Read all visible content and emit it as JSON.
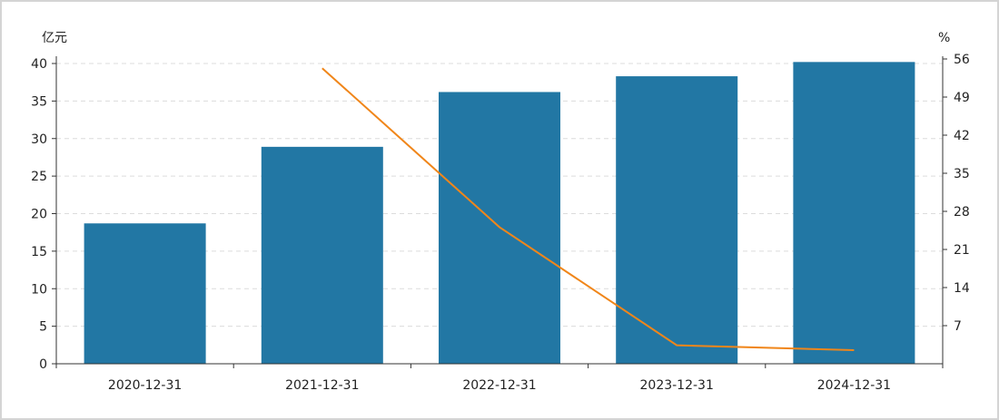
{
  "chart_data": {
    "type": "bar",
    "categories": [
      "2020-12-31",
      "2021-12-31",
      "2022-12-31",
      "2023-12-31",
      "2024-12-31"
    ],
    "series": [
      {
        "type": "bar",
        "axis": "left",
        "color": "#2277a4",
        "values": [
          18.7,
          28.9,
          36.2,
          38.3,
          40.2
        ]
      },
      {
        "type": "line",
        "axis": "right",
        "color": "#f0861a",
        "values": [
          null,
          54.3,
          25.1,
          3.4,
          2.5
        ]
      }
    ],
    "y_left": {
      "unit": "亿元",
      "ylim": [
        0,
        40
      ],
      "ticks": [
        0,
        5,
        10,
        15,
        20,
        25,
        30,
        35,
        40
      ]
    },
    "y_right": {
      "unit": "%",
      "ylim": [
        0,
        56
      ],
      "ticks": [
        7,
        14,
        21,
        28,
        35,
        42,
        49,
        56
      ]
    },
    "grid": true
  }
}
